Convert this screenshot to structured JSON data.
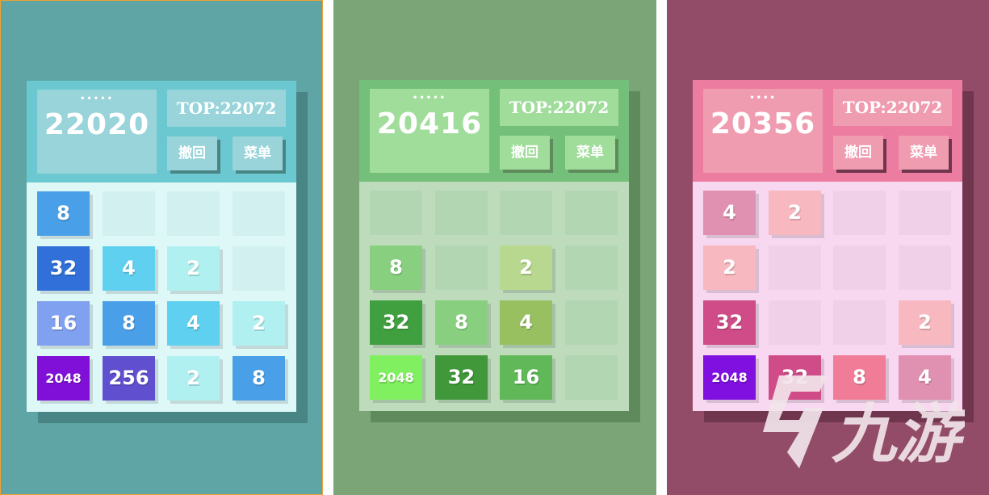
{
  "panels": [
    {
      "theme": {
        "bg": "#5fa5a5",
        "shadow": "#4a8585",
        "header": "#6cc8d0",
        "box": "#98d4da",
        "grid": "#def8f8",
        "empty": "#d2f0f0",
        "border": "#f0a030"
      },
      "dots": "•••••",
      "score": "22020",
      "top": "TOP:22072",
      "undo": "撤回",
      "menu": "菜单",
      "tiles": [
        [
          "8",
          "",
          "",
          ""
        ],
        [
          "32",
          "4",
          "2",
          ""
        ],
        [
          "16",
          "8",
          "4",
          "2"
        ],
        [
          "2048",
          "256",
          "2",
          "8"
        ]
      ],
      "colors": [
        [
          "#4aa0e8",
          "",
          "",
          ""
        ],
        [
          "#3070d8",
          "#60d0f0",
          "#b0f0f0",
          ""
        ],
        [
          "#80a0f0",
          "#4aa0e8",
          "#60d0f0",
          "#b0f0f0"
        ],
        [
          "#8010d8",
          "#6050d0",
          "#b0f0f0",
          "#4aa0e8"
        ]
      ]
    },
    {
      "theme": {
        "bg": "#7ba577",
        "shadow": "#5f8a5c",
        "header": "#74c07a",
        "box": "#a0dc9a",
        "grid": "#bedcbc",
        "empty": "#b3d6b2",
        "border": ""
      },
      "dots": "•••••",
      "score": "20416",
      "top": "TOP:22072",
      "undo": "撤回",
      "menu": "菜单",
      "tiles": [
        [
          "",
          "",
          "",
          ""
        ],
        [
          "8",
          "",
          "2",
          ""
        ],
        [
          "32",
          "8",
          "4",
          ""
        ],
        [
          "2048",
          "32",
          "16",
          ""
        ]
      ],
      "colors": [
        [
          "",
          "",
          "",
          ""
        ],
        [
          "#88d080",
          "",
          "#b8d890",
          ""
        ],
        [
          "#40a040",
          "#88d080",
          "#98c060",
          ""
        ],
        [
          "#80f060",
          "#40983a",
          "#60b858",
          ""
        ]
      ]
    },
    {
      "theme": {
        "bg": "#924c68",
        "shadow": "#70364e",
        "header": "#ec7ca0",
        "box": "#f09cb0",
        "grid": "#f8d8f0",
        "empty": "#f0d0e8",
        "border": ""
      },
      "dots": "••••",
      "score": "20356",
      "top": "TOP:22072",
      "undo": "撤回",
      "menu": "菜单",
      "tiles": [
        [
          "4",
          "2",
          "",
          ""
        ],
        [
          "2",
          "",
          "",
          ""
        ],
        [
          "32",
          "",
          "",
          "2"
        ],
        [
          "2048",
          "32",
          "8",
          "4"
        ]
      ],
      "colors": [
        [
          "#e090b0",
          "#f8b8c0",
          "",
          ""
        ],
        [
          "#f8b8c0",
          "",
          "",
          ""
        ],
        [
          "#d04c88",
          "",
          "",
          "#f8b8c0"
        ],
        [
          "#8010e0",
          "#d04c88",
          "#f07c98",
          "#e090b0"
        ]
      ]
    }
  ],
  "watermark": {
    "text": "九游",
    "color": "#f2e4ea"
  }
}
